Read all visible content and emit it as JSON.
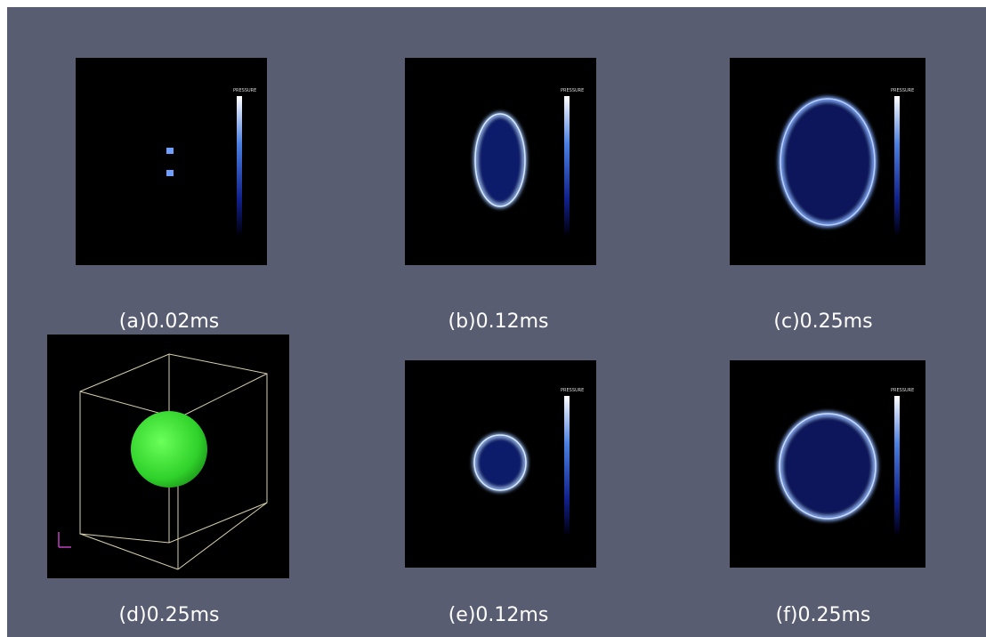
{
  "panels": [
    {
      "caption": "(a)0.02ms",
      "legend_title": "PRESSURE"
    },
    {
      "caption": "(b)0.12ms",
      "legend_title": "PRESSURE"
    },
    {
      "caption": "(c)0.25ms",
      "legend_title": "PRESSURE"
    },
    {
      "caption": "(d)0.25ms"
    },
    {
      "caption": "(e)0.12ms",
      "legend_title": "PRESSURE"
    },
    {
      "caption": "(f)0.25ms",
      "legend_title": "PRESSURE"
    }
  ]
}
